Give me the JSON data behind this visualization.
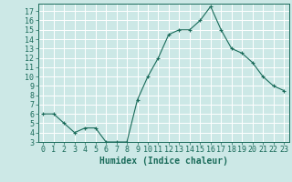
{
  "x": [
    0,
    1,
    2,
    3,
    4,
    5,
    6,
    7,
    8,
    9,
    10,
    11,
    12,
    13,
    14,
    15,
    16,
    17,
    18,
    19,
    20,
    21,
    22,
    23
  ],
  "y": [
    6,
    6,
    5,
    4,
    4.5,
    4.5,
    3,
    3,
    3,
    7.5,
    10,
    12,
    14.5,
    15,
    15,
    16,
    17.5,
    15,
    13,
    12.5,
    11.5,
    10,
    9,
    8.5
  ],
  "line_color": "#1a6b5a",
  "marker": "+",
  "marker_color": "#1a6b5a",
  "bg_color": "#cce8e6",
  "grid_color": "#ffffff",
  "tick_label_color": "#1a6b5a",
  "xlabel": "Humidex (Indice chaleur)",
  "xlim": [
    -0.5,
    23.5
  ],
  "ylim": [
    3,
    17.8
  ],
  "yticks": [
    3,
    4,
    5,
    6,
    7,
    8,
    9,
    10,
    11,
    12,
    13,
    14,
    15,
    16,
    17
  ],
  "xticks": [
    0,
    1,
    2,
    3,
    4,
    5,
    6,
    7,
    8,
    9,
    10,
    11,
    12,
    13,
    14,
    15,
    16,
    17,
    18,
    19,
    20,
    21,
    22,
    23
  ],
  "xlabel_fontsize": 7,
  "tick_fontsize": 6,
  "label_color": "#1a6b5a"
}
